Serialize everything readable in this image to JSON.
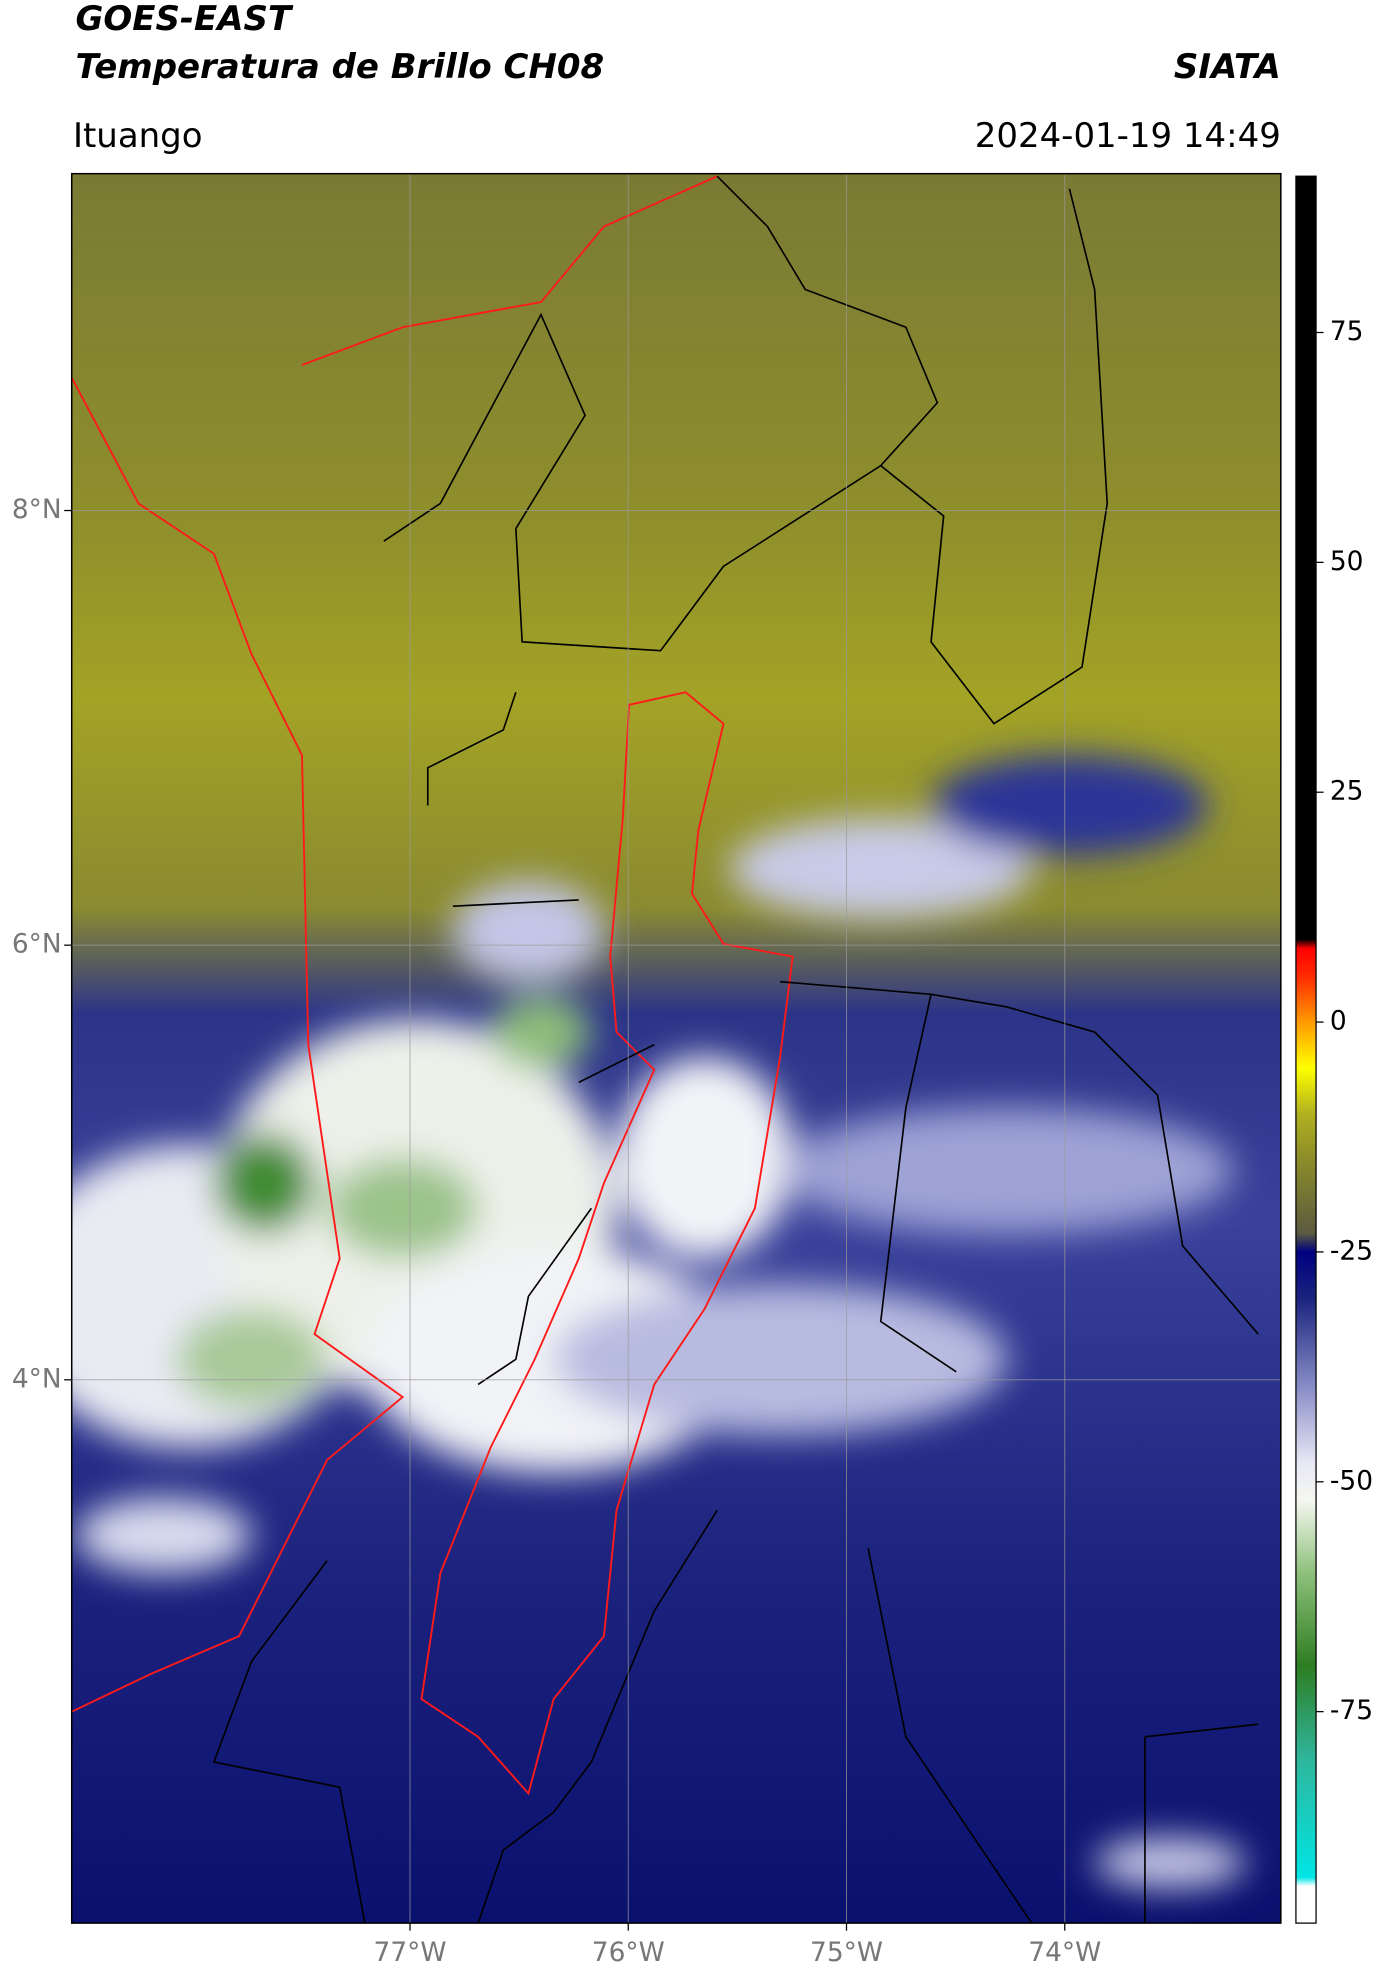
{
  "header": {
    "title": "GOES-EAST",
    "subtitle": "Temperatura de Brillo CH08",
    "brand": "SIATA",
    "location": "Ituango",
    "datetime": "2024-01-19 14:49"
  },
  "map": {
    "latlim": [
      1.5,
      9.55
    ],
    "lonlim": [
      -78.55,
      -73.01
    ],
    "lat_ticks": [
      {
        "value": 8,
        "label": "8°N"
      },
      {
        "value": 6,
        "label": "6°N"
      },
      {
        "value": 4,
        "label": "4°N"
      }
    ],
    "lon_ticks": [
      {
        "value": -77,
        "label": "77°W"
      },
      {
        "value": -76,
        "label": "76°W"
      },
      {
        "value": -75,
        "label": "75°W"
      },
      {
        "value": -74,
        "label": "74°W"
      }
    ],
    "grid": true
  },
  "colorbar": {
    "lim": [
      -98,
      92
    ],
    "ticks": [
      75,
      50,
      25,
      0,
      -25,
      -50,
      -75
    ],
    "colormap": [
      {
        "value": -98,
        "color": "#ffffff"
      },
      {
        "value": -94,
        "color": "#ffffff"
      },
      {
        "value": -93,
        "color": "#00e5e5"
      },
      {
        "value": -80,
        "color": "#2fb59a"
      },
      {
        "value": -70,
        "color": "#2e7d22"
      },
      {
        "value": -60,
        "color": "#8dc07a"
      },
      {
        "value": -52,
        "color": "#f5f7f0"
      },
      {
        "value": -48,
        "color": "#e8e8f5"
      },
      {
        "value": -40,
        "color": "#8c90c8"
      },
      {
        "value": -30,
        "color": "#1a237e"
      },
      {
        "value": -25,
        "color": "#000080"
      },
      {
        "value": -23,
        "color": "#5a5a40"
      },
      {
        "value": -15,
        "color": "#8c8c2a"
      },
      {
        "value": -10,
        "color": "#b0b020"
      },
      {
        "value": -5,
        "color": "#ffff00"
      },
      {
        "value": 0,
        "color": "#ff9900"
      },
      {
        "value": 5,
        "color": "#ff2a00"
      },
      {
        "value": 8,
        "color": "#ff0000"
      },
      {
        "value": 9,
        "color": "#000000"
      },
      {
        "value": 92,
        "color": "#000000"
      }
    ]
  }
}
